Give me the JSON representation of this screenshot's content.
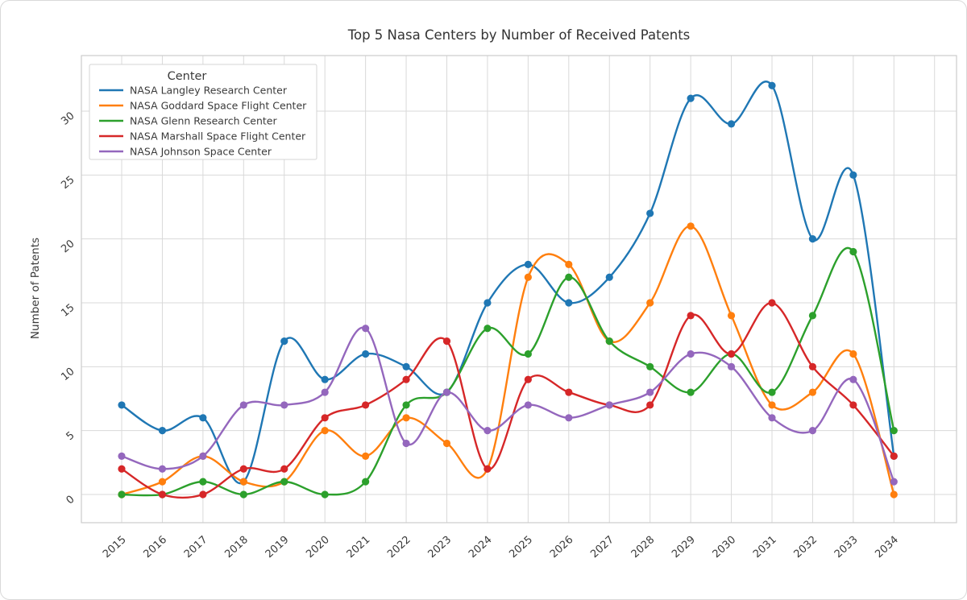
{
  "chart_data": {
    "type": "line",
    "title": "Top 5 Nasa Centers by Number of Received Patents",
    "ylabel": "Number of Patents",
    "legend_title": "Center",
    "legend_position": "upper left",
    "grid": true,
    "x": [
      "2015",
      "2016",
      "2017",
      "2018",
      "2019",
      "2020",
      "2021",
      "2022",
      "2023",
      "2024",
      "2025",
      "2026",
      "2027",
      "2028",
      "2029",
      "2030",
      "2031",
      "2032",
      "2033",
      "2034"
    ],
    "yticks": [
      0,
      5,
      10,
      15,
      20,
      25,
      30
    ],
    "ylim": [
      -2.2,
      34.3
    ],
    "series": [
      {
        "name": "NASA Langley Research Center",
        "color": "#1f77b4",
        "values": [
          7,
          5,
          6,
          1,
          12,
          9,
          11,
          10,
          8,
          15,
          18,
          15,
          17,
          22,
          31,
          29,
          32,
          20,
          25,
          3
        ]
      },
      {
        "name": "NASA Goddard Space Flight Center",
        "color": "#ff7f0e",
        "values": [
          0,
          1,
          3,
          1,
          1,
          5,
          3,
          6,
          4,
          2,
          17,
          18,
          12,
          15,
          21,
          14,
          7,
          8,
          11,
          0
        ]
      },
      {
        "name": "NASA Glenn Research Center",
        "color": "#2ca02c",
        "values": [
          0,
          0,
          1,
          0,
          1,
          0,
          1,
          7,
          8,
          13,
          11,
          17,
          12,
          10,
          8,
          11,
          8,
          14,
          19,
          5
        ]
      },
      {
        "name": "NASA Marshall Space Flight Center",
        "color": "#d62728",
        "values": [
          2,
          0,
          0,
          2,
          2,
          6,
          7,
          9,
          12,
          2,
          9,
          8,
          7,
          7,
          14,
          11,
          15,
          10,
          7,
          3
        ]
      },
      {
        "name": "NASA Johnson Space Center",
        "color": "#9467bd",
        "values": [
          3,
          2,
          3,
          7,
          7,
          8,
          13,
          4,
          8,
          5,
          7,
          6,
          7,
          8,
          11,
          10,
          6,
          5,
          9,
          1
        ]
      }
    ],
    "style": {
      "grid_color": "#d9d9d9",
      "spine_color": "#cccccc",
      "text_color": "#3a3a3a",
      "background": "#ffffff"
    }
  }
}
